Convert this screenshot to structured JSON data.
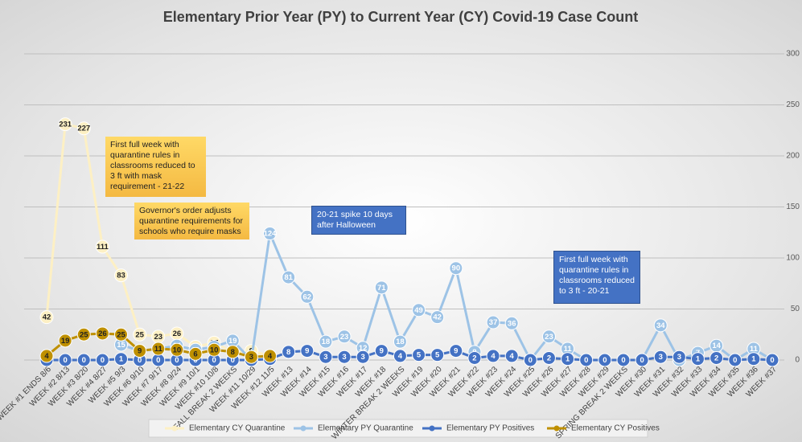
{
  "chart_data": {
    "type": "line",
    "title": "Elementary Prior Year (PY) to Current Year (CY) Covid-19 Case Count",
    "categories": [
      "WEEK #1 ENDS 8/6",
      "WEEK #2 8/13",
      "WEEK #3 8/20",
      "WEEK #4 8/27",
      "WEEK #5 9/3",
      "WEEK #6 9/10",
      "WEEK #7 9/17",
      "WEEK #8 9/24",
      "WEEK #9 10/1",
      "WEEK #10 10/8",
      "FALL BREAK 2 WEEKS",
      "WEEK #11 10/29",
      "WEEK #12 11/5",
      "WEEK #13",
      "WEEK #14",
      "WEEK #15",
      "WEEK #16",
      "WEEK #17",
      "WEEK #18",
      "WINTER BREAK 2 WEEKS",
      "WEEK #19",
      "WEEK #20",
      "WEEK #21",
      "WEEK #22",
      "WEEK #23",
      "WEEK #24",
      "WEEK #25",
      "WEEK #26",
      "WEEK #27",
      "WEEK #28",
      "WEEK #29",
      "SPRING BREAK 2 WEEKS",
      "WEEK #30",
      "WEEK #31",
      "WEEK #32",
      "WEEK #33",
      "WEEK #34",
      "WEEK #35",
      "WEEK #36",
      "WEEK #37"
    ],
    "series": [
      {
        "name": "Elementary CY Quarantine",
        "color": "#fdf0c4",
        "values": [
          42,
          231,
          227,
          111,
          83,
          25,
          23,
          26,
          13,
          17,
          8,
          9,
          4,
          null,
          null,
          null,
          null,
          null,
          null,
          null,
          null,
          null,
          null,
          null,
          null,
          null,
          null,
          null,
          null,
          null,
          null,
          null,
          null,
          null,
          null,
          null,
          null,
          null,
          null,
          null
        ]
      },
      {
        "name": "Elementary PY Quarantine",
        "color": "#9dc3e6",
        "values": [
          null,
          null,
          null,
          null,
          15,
          9,
          11,
          14,
          10,
          13,
          19,
          0,
          124,
          81,
          62,
          18,
          23,
          12,
          71,
          18,
          49,
          42,
          90,
          8,
          37,
          36,
          0,
          23,
          11,
          0,
          0,
          0,
          0,
          34,
          0,
          7,
          14,
          0,
          11,
          0
        ]
      },
      {
        "name": "Elementary PY Positives",
        "color": "#4472c4",
        "values": [
          0,
          0,
          0,
          0,
          1,
          0,
          0,
          0,
          0,
          0,
          0,
          0,
          1,
          8,
          9,
          3,
          3,
          3,
          9,
          4,
          5,
          5,
          9,
          2,
          4,
          4,
          0,
          2,
          1,
          0,
          0,
          0,
          0,
          3,
          3,
          1,
          2,
          0,
          1,
          0
        ]
      },
      {
        "name": "Elementary CY Positives",
        "color": "#bf9000",
        "values": [
          4,
          19,
          25,
          26,
          25,
          9,
          11,
          10,
          6,
          10,
          8,
          3,
          4,
          null,
          null,
          null,
          null,
          null,
          null,
          null,
          null,
          null,
          null,
          null,
          null,
          null,
          null,
          null,
          null,
          null,
          null,
          null,
          null,
          null,
          null,
          null,
          null,
          null,
          null,
          null
        ]
      }
    ],
    "ylim": [
      0,
      300
    ],
    "yticks": [
      0,
      50,
      100,
      150,
      200,
      250,
      300
    ],
    "grid": true,
    "legend": "bottom",
    "annotations": [
      "First full week with quarantine rules in classrooms reduced to 3 ft with mask requirement - 21-22",
      "Governor's order adjusts quarantine requirements for schools who require masks",
      "20-21 spike 10 days after Halloween",
      "First full week with quarantine rules in classrooms reduced to 3 ft - 20-21"
    ]
  }
}
